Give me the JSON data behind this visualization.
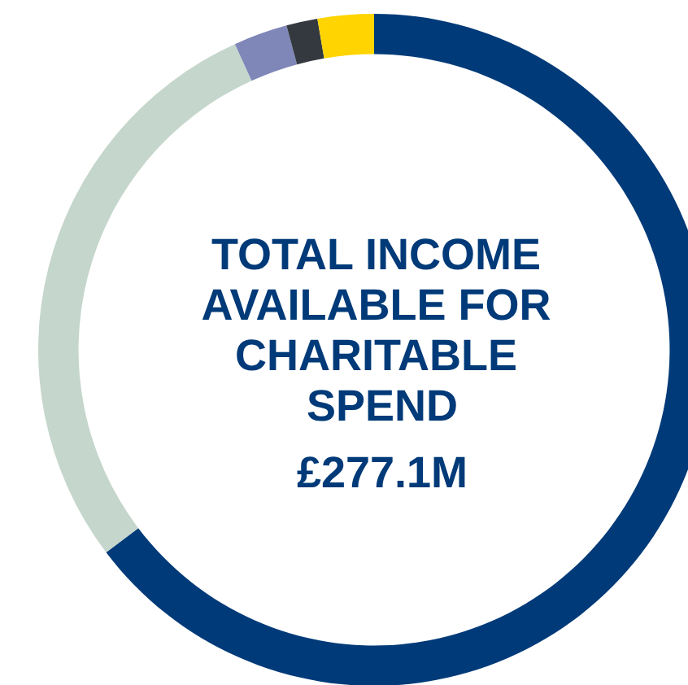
{
  "chart_data": {
    "type": "donut",
    "title": "TOTAL INCOME AVAILABLE FOR CHARITABLE SPEND",
    "subtitle": "£277.1M",
    "categories": [
      null,
      null,
      null,
      null,
      null
    ],
    "values": [
      64.7,
      28.5,
      2.6,
      1.5,
      2.7
    ],
    "colors": [
      "#003a78",
      "#c5d6cc",
      "#7f86b8",
      "#34393f",
      "#ffd400"
    ]
  }
}
